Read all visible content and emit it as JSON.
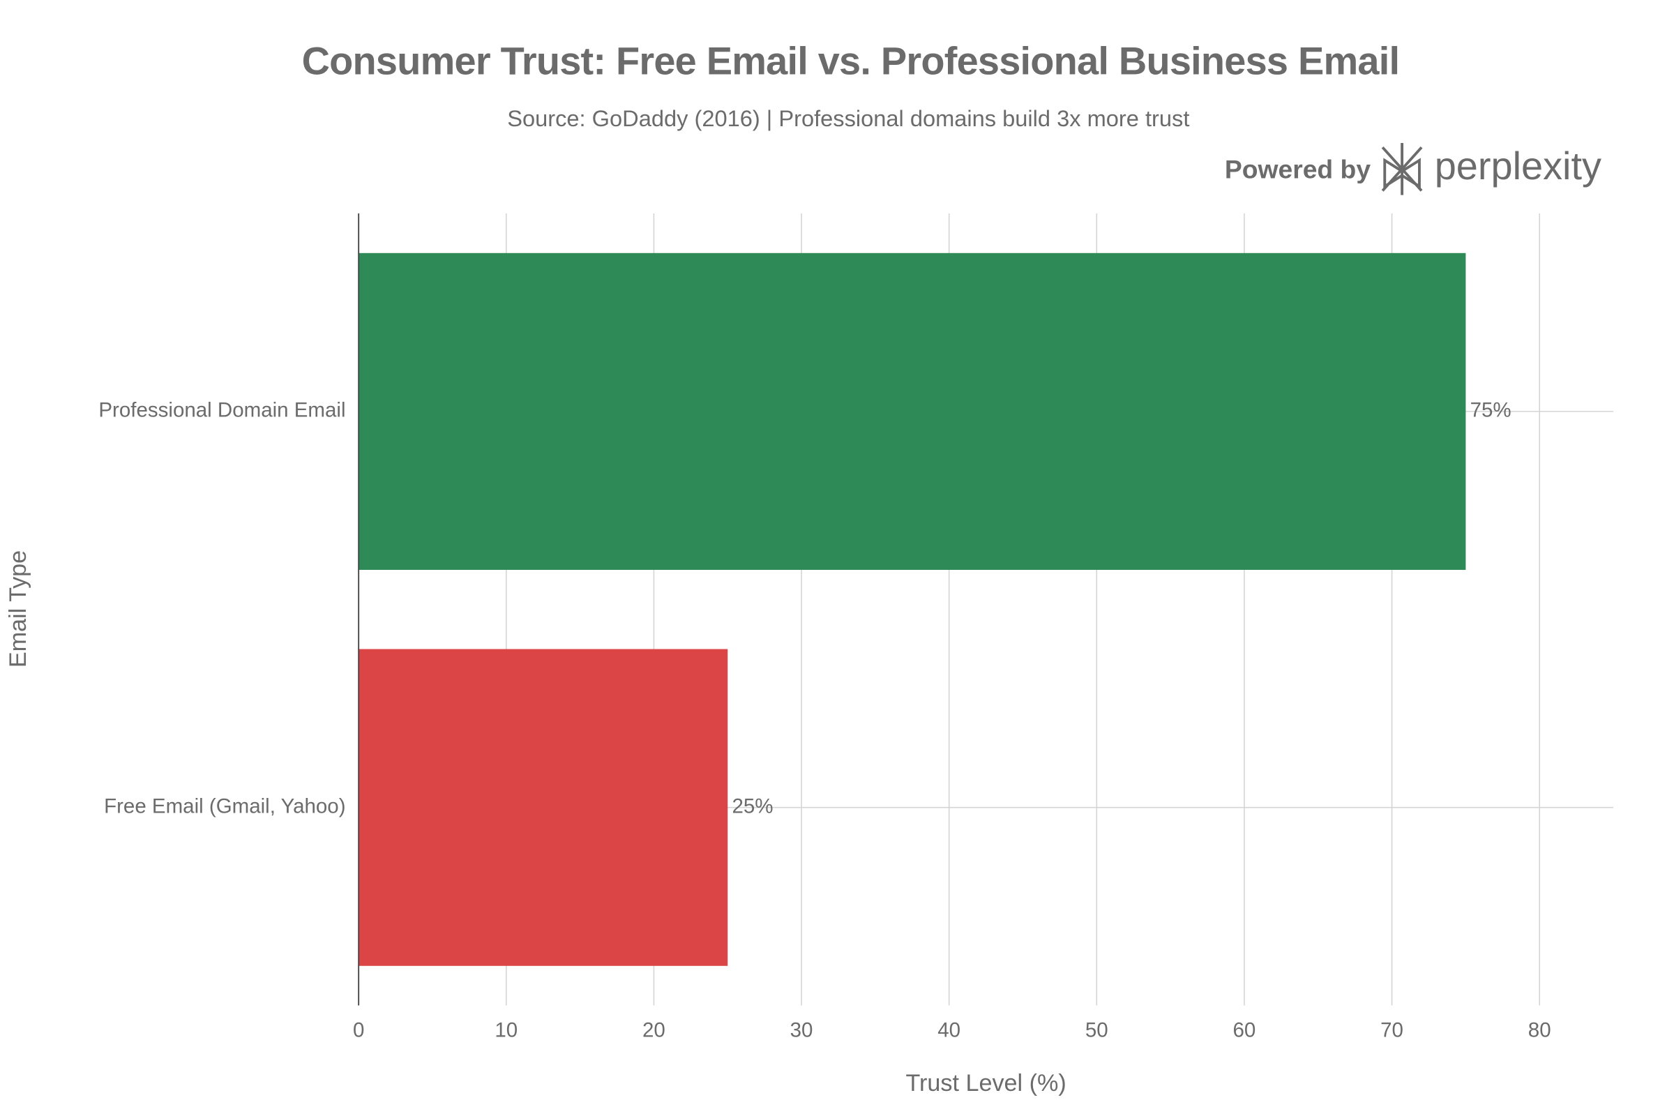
{
  "chart_data": {
    "type": "hbar",
    "title": "Consumer Trust: Free Email vs. Professional Business Email",
    "subtitle": "Source: GoDaddy (2016) | Professional domains build 3x more trust",
    "branding": {
      "prefix": "Powered by",
      "name": "perplexity"
    },
    "x_label": "Trust Level (%)",
    "y_label": "Email Type",
    "categories": [
      "Professional Domain Email",
      "Free Email (Gmail, Yahoo)"
    ],
    "values": [
      75,
      25
    ],
    "value_labels": [
      "75%",
      "25%"
    ],
    "colors": [
      "#2e8b57",
      "#db4545"
    ],
    "xlim": [
      0,
      85
    ],
    "xticks": [
      0,
      10,
      20,
      30,
      40,
      50,
      60,
      70,
      80
    ],
    "grid": true
  }
}
